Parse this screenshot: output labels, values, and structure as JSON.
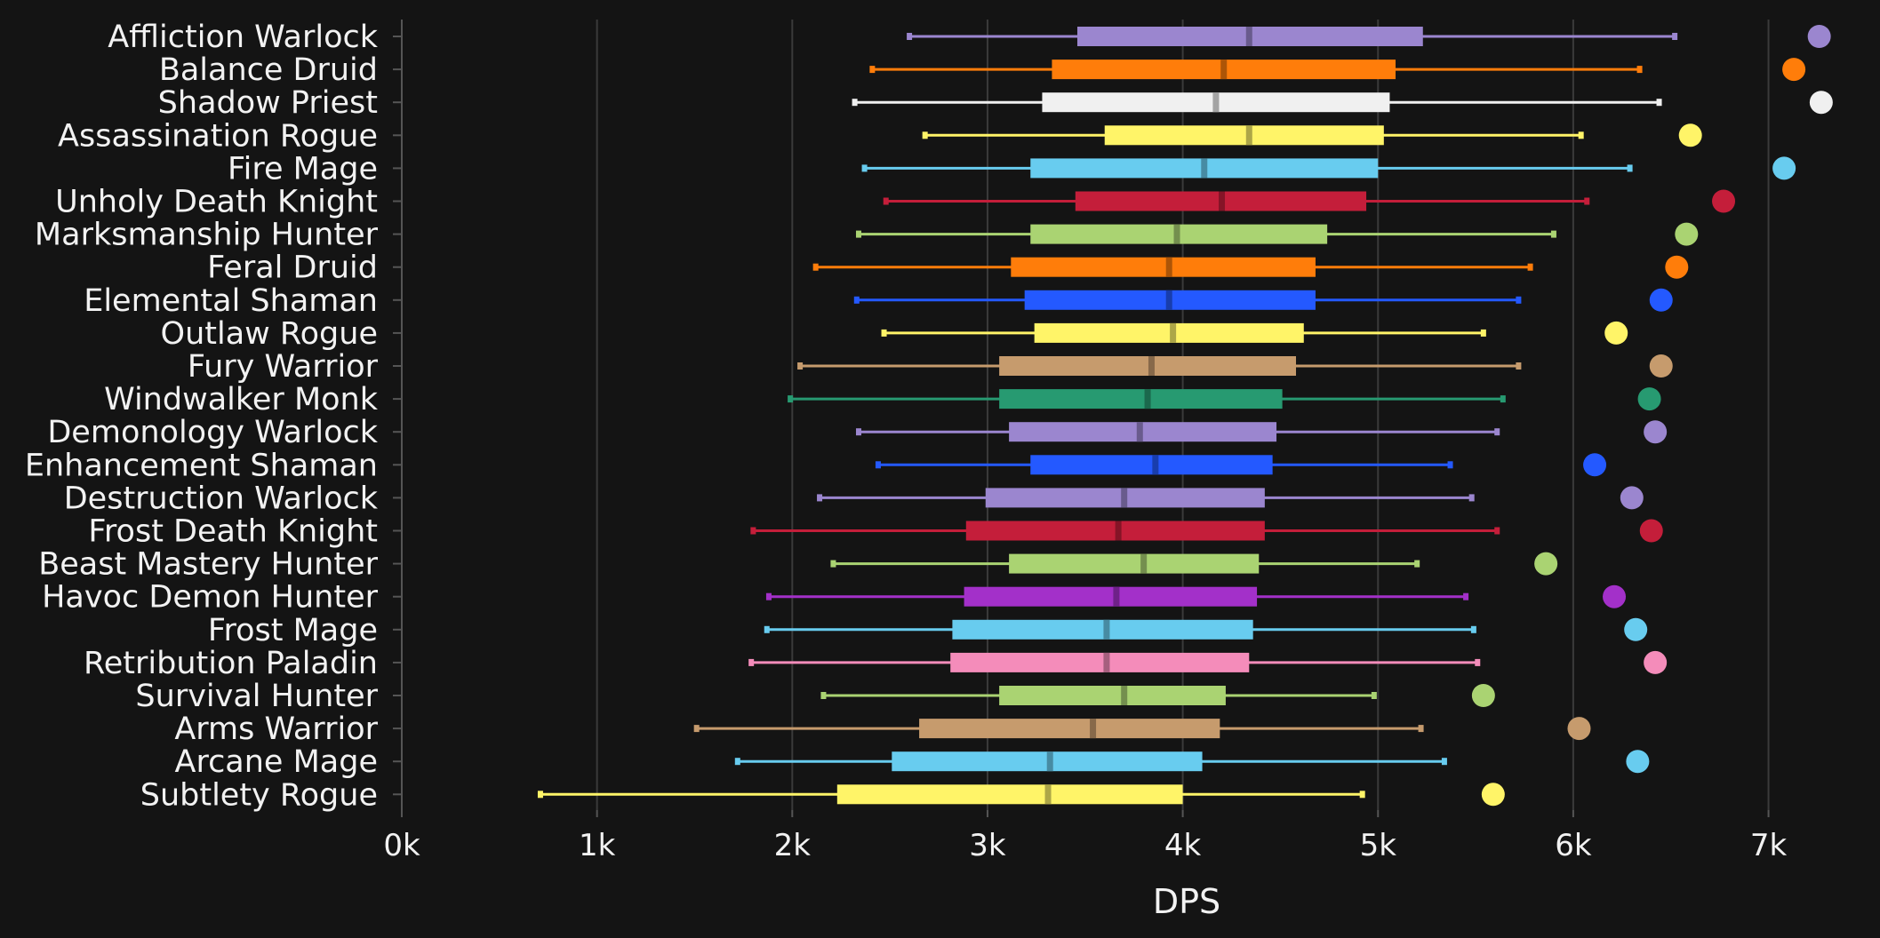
{
  "chart_data": {
    "type": "box",
    "xlabel": "DPS",
    "ylabel": "",
    "xlim": [
      0,
      7300
    ],
    "xticks": [
      0,
      1000,
      2000,
      3000,
      4000,
      5000,
      6000,
      7000
    ],
    "xtick_labels": [
      "0k",
      "1k",
      "2k",
      "3k",
      "4k",
      "5k",
      "6k",
      "7k"
    ],
    "grid": "vertical",
    "colors": {
      "background": "#141414",
      "grid": "#3a3a3a",
      "text": "#f2f2f2"
    },
    "series": [
      {
        "name": "Affliction Warlock",
        "color": "#9b86cf",
        "whisker_low": 2600,
        "q1": 3460,
        "median": 4340,
        "q3": 5230,
        "whisker_high": 6520,
        "outlier": 7260
      },
      {
        "name": "Balance Druid",
        "color": "#ff7d0a",
        "whisker_low": 2410,
        "q1": 3330,
        "median": 4210,
        "q3": 5090,
        "whisker_high": 6340,
        "outlier": 7130
      },
      {
        "name": "Shadow Priest",
        "color": "#f0f0f0",
        "whisker_low": 2320,
        "q1": 3280,
        "median": 4170,
        "q3": 5060,
        "whisker_high": 6440,
        "outlier": 7270
      },
      {
        "name": "Assassination Rogue",
        "color": "#fff468",
        "whisker_low": 2680,
        "q1": 3600,
        "median": 4340,
        "q3": 5030,
        "whisker_high": 6040,
        "outlier": 6600
      },
      {
        "name": "Fire Mage",
        "color": "#68ccef",
        "whisker_low": 2370,
        "q1": 3220,
        "median": 4110,
        "q3": 5000,
        "whisker_high": 6290,
        "outlier": 7080
      },
      {
        "name": "Unholy Death Knight",
        "color": "#c41e3a",
        "whisker_low": 2480,
        "q1": 3450,
        "median": 4200,
        "q3": 4940,
        "whisker_high": 6070,
        "outlier": 6770
      },
      {
        "name": "Marksmanship Hunter",
        "color": "#aad372",
        "whisker_low": 2340,
        "q1": 3220,
        "median": 3970,
        "q3": 4740,
        "whisker_high": 5900,
        "outlier": 6580
      },
      {
        "name": "Feral Druid",
        "color": "#ff7d0a",
        "whisker_low": 2120,
        "q1": 3120,
        "median": 3930,
        "q3": 4680,
        "whisker_high": 5780,
        "outlier": 6530
      },
      {
        "name": "Elemental Shaman",
        "color": "#2459ff",
        "whisker_low": 2330,
        "q1": 3190,
        "median": 3930,
        "q3": 4680,
        "whisker_high": 5720,
        "outlier": 6450
      },
      {
        "name": "Outlaw Rogue",
        "color": "#fff468",
        "whisker_low": 2470,
        "q1": 3240,
        "median": 3950,
        "q3": 4620,
        "whisker_high": 5540,
        "outlier": 6220
      },
      {
        "name": "Fury Warrior",
        "color": "#c69b6d",
        "whisker_low": 2040,
        "q1": 3060,
        "median": 3840,
        "q3": 4580,
        "whisker_high": 5720,
        "outlier": 6450
      },
      {
        "name": "Windwalker Monk",
        "color": "#279a71",
        "whisker_low": 1990,
        "q1": 3060,
        "median": 3820,
        "q3": 4510,
        "whisker_high": 5640,
        "outlier": 6390
      },
      {
        "name": "Demonology Warlock",
        "color": "#9b86cf",
        "whisker_low": 2340,
        "q1": 3110,
        "median": 3780,
        "q3": 4480,
        "whisker_high": 5610,
        "outlier": 6420
      },
      {
        "name": "Enhancement Shaman",
        "color": "#2459ff",
        "whisker_low": 2440,
        "q1": 3220,
        "median": 3860,
        "q3": 4460,
        "whisker_high": 5370,
        "outlier": 6110
      },
      {
        "name": "Destruction Warlock",
        "color": "#9b86cf",
        "whisker_low": 2140,
        "q1": 2990,
        "median": 3700,
        "q3": 4420,
        "whisker_high": 5480,
        "outlier": 6300
      },
      {
        "name": "Frost Death Knight",
        "color": "#c41e3a",
        "whisker_low": 1800,
        "q1": 2890,
        "median": 3670,
        "q3": 4420,
        "whisker_high": 5610,
        "outlier": 6400
      },
      {
        "name": "Beast Mastery Hunter",
        "color": "#aad372",
        "whisker_low": 2210,
        "q1": 3110,
        "median": 3800,
        "q3": 4390,
        "whisker_high": 5200,
        "outlier": 5860
      },
      {
        "name": "Havoc Demon Hunter",
        "color": "#a330c9",
        "whisker_low": 1880,
        "q1": 2880,
        "median": 3660,
        "q3": 4380,
        "whisker_high": 5450,
        "outlier": 6210
      },
      {
        "name": "Frost Mage",
        "color": "#68ccef",
        "whisker_low": 1870,
        "q1": 2820,
        "median": 3610,
        "q3": 4360,
        "whisker_high": 5490,
        "outlier": 6320
      },
      {
        "name": "Retribution Paladin",
        "color": "#f48cba",
        "whisker_low": 1790,
        "q1": 2810,
        "median": 3610,
        "q3": 4340,
        "whisker_high": 5510,
        "outlier": 6420
      },
      {
        "name": "Survival Hunter",
        "color": "#aad372",
        "whisker_low": 2160,
        "q1": 3060,
        "median": 3700,
        "q3": 4220,
        "whisker_high": 4980,
        "outlier": 5540
      },
      {
        "name": "Arms Warrior",
        "color": "#c69b6d",
        "whisker_low": 1510,
        "q1": 2650,
        "median": 3540,
        "q3": 4190,
        "whisker_high": 5220,
        "outlier": 6030
      },
      {
        "name": "Arcane Mage",
        "color": "#68ccef",
        "whisker_low": 1720,
        "q1": 2510,
        "median": 3320,
        "q3": 4100,
        "whisker_high": 5340,
        "outlier": 6330
      },
      {
        "name": "Subtlety Rogue",
        "color": "#fff468",
        "whisker_low": 710,
        "q1": 2230,
        "median": 3310,
        "q3": 4000,
        "whisker_high": 4920,
        "outlier": 5590
      }
    ]
  }
}
